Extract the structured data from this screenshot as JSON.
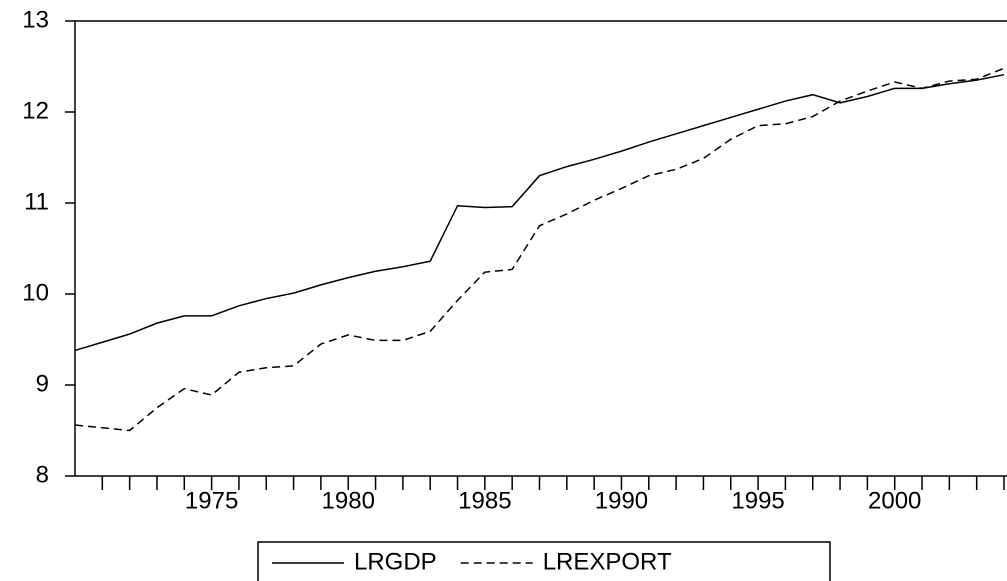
{
  "chart_data": {
    "type": "line",
    "x": [
      1970,
      1971,
      1972,
      1973,
      1974,
      1975,
      1976,
      1977,
      1978,
      1979,
      1980,
      1981,
      1982,
      1983,
      1984,
      1985,
      1986,
      1987,
      1988,
      1989,
      1990,
      1991,
      1992,
      1993,
      1994,
      1995,
      1996,
      1997,
      1998,
      1999,
      2000,
      2001,
      2002,
      2003,
      2004
    ],
    "series": [
      {
        "name": "LRGDP",
        "color": "#000000",
        "linestyle": "solid",
        "values": [
          9.38,
          9.47,
          9.56,
          9.68,
          9.76,
          9.76,
          9.87,
          9.95,
          10.01,
          10.1,
          10.18,
          10.25,
          10.3,
          10.36,
          10.97,
          10.95,
          10.96,
          11.3,
          11.4,
          11.48,
          11.57,
          11.67,
          11.76,
          11.85,
          11.94,
          12.03,
          12.12,
          12.19,
          12.1,
          12.17,
          12.26,
          12.26,
          12.31,
          12.35,
          12.41
        ]
      },
      {
        "name": "LREXPORT",
        "color": "#000000",
        "linestyle": "dashed",
        "values": [
          8.56,
          8.53,
          8.5,
          8.75,
          8.96,
          8.89,
          9.14,
          9.19,
          9.21,
          9.45,
          9.55,
          9.49,
          9.49,
          9.59,
          9.93,
          10.24,
          10.27,
          10.75,
          10.88,
          11.03,
          11.16,
          11.3,
          11.37,
          11.49,
          11.7,
          11.85,
          11.87,
          11.95,
          12.12,
          12.23,
          12.33,
          12.26,
          12.34,
          12.36,
          12.48
        ]
      }
    ],
    "xlim": [
      1970,
      2004
    ],
    "xticks": [
      1975,
      1980,
      1985,
      1990,
      1995,
      2000
    ],
    "xminorticks": [
      1971,
      1972,
      1973,
      1974,
      1976,
      1977,
      1978,
      1979,
      1981,
      1982,
      1983,
      1984,
      1986,
      1987,
      1988,
      1989,
      1991,
      1992,
      1993,
      1994,
      1996,
      1997,
      1998,
      1999,
      2001,
      2002,
      2003,
      2004
    ],
    "ylim": [
      8,
      13
    ],
    "yticks": [
      8,
      9,
      10,
      11,
      12,
      13
    ],
    "legend": "bottom"
  }
}
